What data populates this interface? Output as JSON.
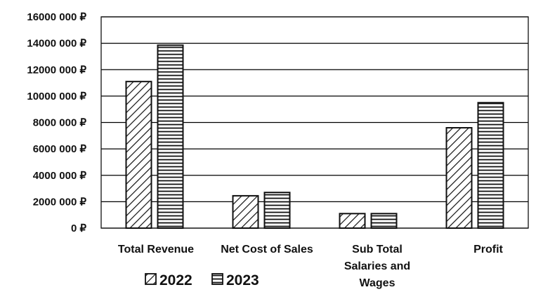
{
  "chart_data": {
    "type": "bar",
    "categories": [
      "Total  Revenue",
      "Net Cost of Sales",
      "Sub Total Salaries and Wages",
      "Profit"
    ],
    "category_lines": [
      [
        "Total  Revenue"
      ],
      [
        "Net Cost of Sales"
      ],
      [
        "Sub Total",
        "Salaries and",
        "Wages"
      ],
      [
        "Profit"
      ]
    ],
    "series": [
      {
        "name": "2022",
        "values": [
          11100000,
          2450000,
          1100000,
          7600000
        ],
        "pattern": "diagonal-hatch"
      },
      {
        "name": "2023",
        "values": [
          13850000,
          2700000,
          1100000,
          9500000
        ],
        "pattern": "horizontal-hatch"
      }
    ],
    "ylim": [
      0,
      16000000
    ],
    "yticks": [
      0,
      2000000,
      4000000,
      6000000,
      8000000,
      10000000,
      12000000,
      14000000,
      16000000
    ],
    "ytick_labels": [
      "0 ₽",
      "2000 000 ₽",
      "4000 000 ₽",
      "6000 000 ₽",
      "8000 000 ₽",
      "10000 000 ₽",
      "12000 000 ₽",
      "14000 000 ₽",
      "16000 000 ₽"
    ],
    "title": "",
    "xlabel": "",
    "ylabel": "",
    "grid": true,
    "legend_position": "bottom-left",
    "colors": {
      "bar_fill": "#ffffff",
      "stroke": "#111111",
      "grid": "#000000"
    }
  }
}
